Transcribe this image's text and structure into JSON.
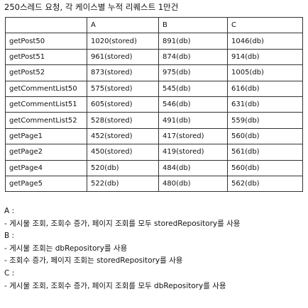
{
  "title": "250스레드 요청, 각 케이스별 누적 리퀘스트 1만건",
  "table": {
    "headers": [
      "",
      "A",
      "B",
      "C"
    ],
    "rows": [
      [
        "getPost50",
        "1020(stored)",
        "891(db)",
        "1046(db)"
      ],
      [
        "getPost51",
        "961(stored)",
        "874(db)",
        "914(db)"
      ],
      [
        "getPost52",
        "873(stored)",
        "975(db)",
        "1005(db)"
      ],
      [
        "getCommentList50",
        "575(stored)",
        "545(db)",
        "616(db)"
      ],
      [
        "getCommentList51",
        "605(stored)",
        "546(db)",
        "631(db)"
      ],
      [
        "getCommentList52",
        "528(stored)",
        "491(db)",
        "559(db)"
      ],
      [
        "getPage1",
        "452(stored)",
        "417(stored)",
        "560(db)"
      ],
      [
        "getPage2",
        "450(stored)",
        "419(stored)",
        "561(db)"
      ],
      [
        "getPage4",
        "520(db)",
        "484(db)",
        "560(db)"
      ],
      [
        "getPage5",
        "522(db)",
        "480(db)",
        "562(db)"
      ]
    ]
  },
  "legend": {
    "a_header": "A :",
    "a_items": [
      "- 게시물 조회, 조회수 증가, 페이지 조회를 모두 storedRepository를 사용"
    ],
    "b_header": "B :",
    "b_items": [
      "- 게시물 조회는 dbRepository를 사용",
      "- 조회수 증가, 페이지 조회는 storedRepository를 사용"
    ],
    "c_header": "C :",
    "c_items": [
      "- 게시물 조회, 조회수 증가, 페이지 조회를 모두 dbRepository를 사용"
    ]
  }
}
